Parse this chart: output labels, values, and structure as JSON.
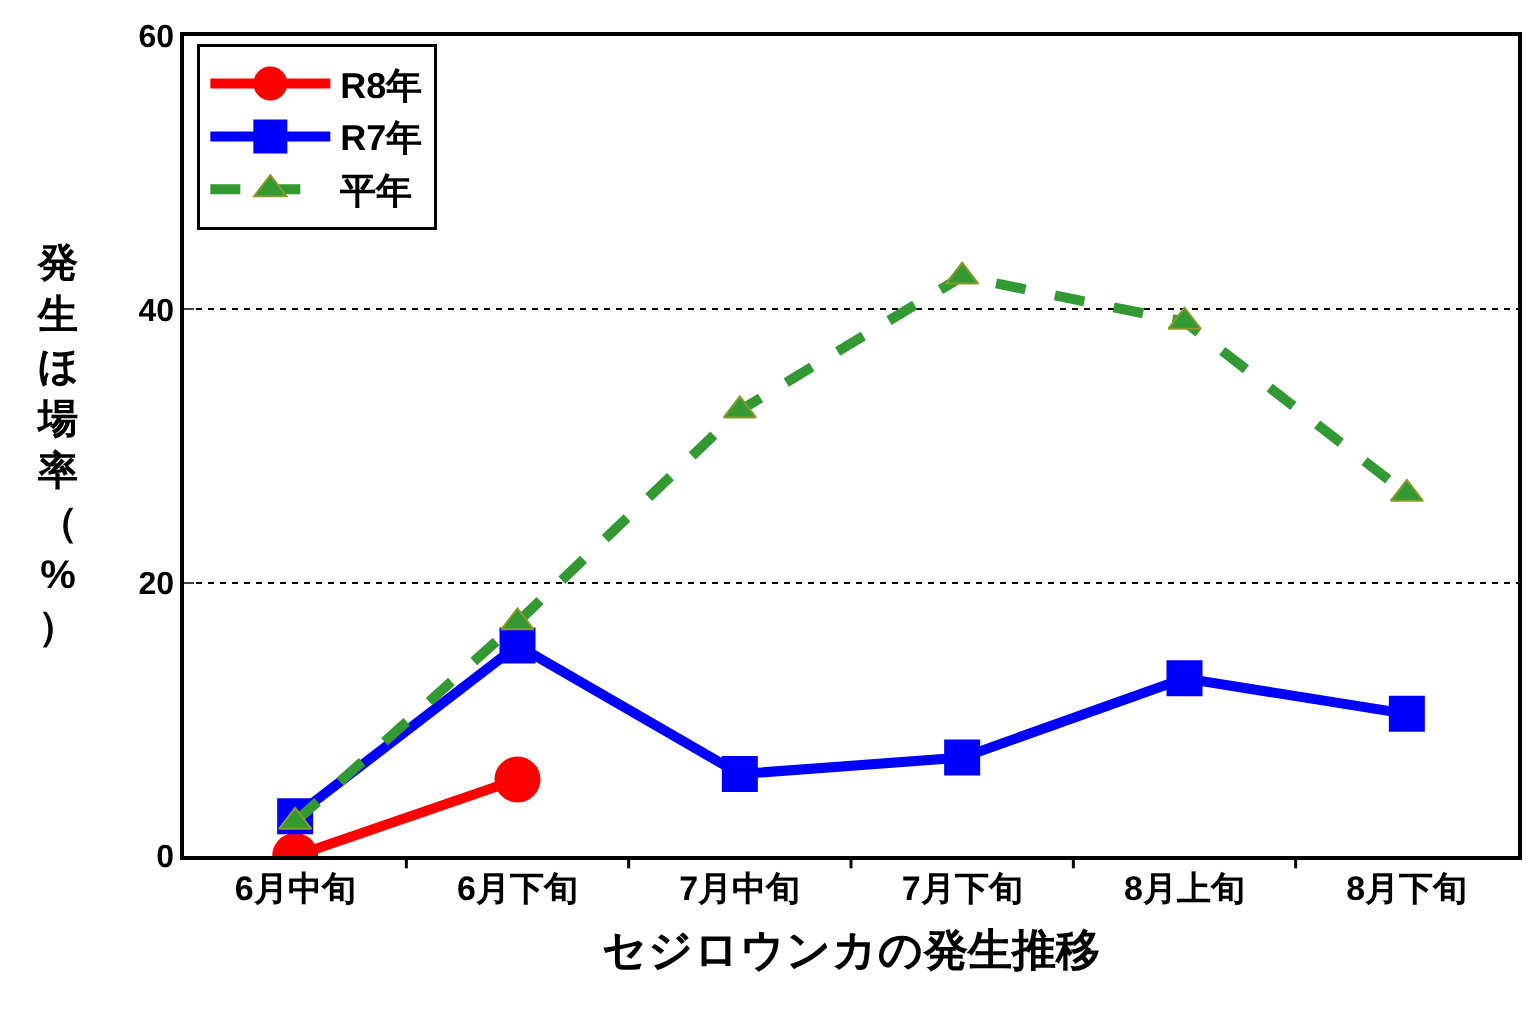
{
  "chart_data": {
    "type": "line",
    "xlabel": "セジロウンカの発生推移",
    "ylabel": "発生ほ場率（%）",
    "categories": [
      "6月中旬",
      "6月下旬",
      "7月中旬",
      "7月下旬",
      "8月上旬",
      "8月下旬"
    ],
    "ylim": [
      0,
      60
    ],
    "yticks": [
      0,
      20,
      40,
      60
    ],
    "grid": "y",
    "legend": "top left",
    "series": [
      {
        "name": "R8年",
        "color": "#ff0000",
        "marker": "circle",
        "line_style": "solid",
        "values": [
          0,
          5.6,
          null,
          null,
          null,
          null
        ]
      },
      {
        "name": "R7年",
        "color": "#0000ff",
        "marker": "square",
        "line_style": "solid",
        "values": [
          2.9,
          15.4,
          6.0,
          7.2,
          13.0,
          10.4
        ]
      },
      {
        "name": "平年",
        "color": "#339933",
        "marker": "triangle",
        "line_style": "dashed",
        "values": [
          2.5,
          17.1,
          32.6,
          42.4,
          39.1,
          26.5
        ]
      }
    ]
  }
}
